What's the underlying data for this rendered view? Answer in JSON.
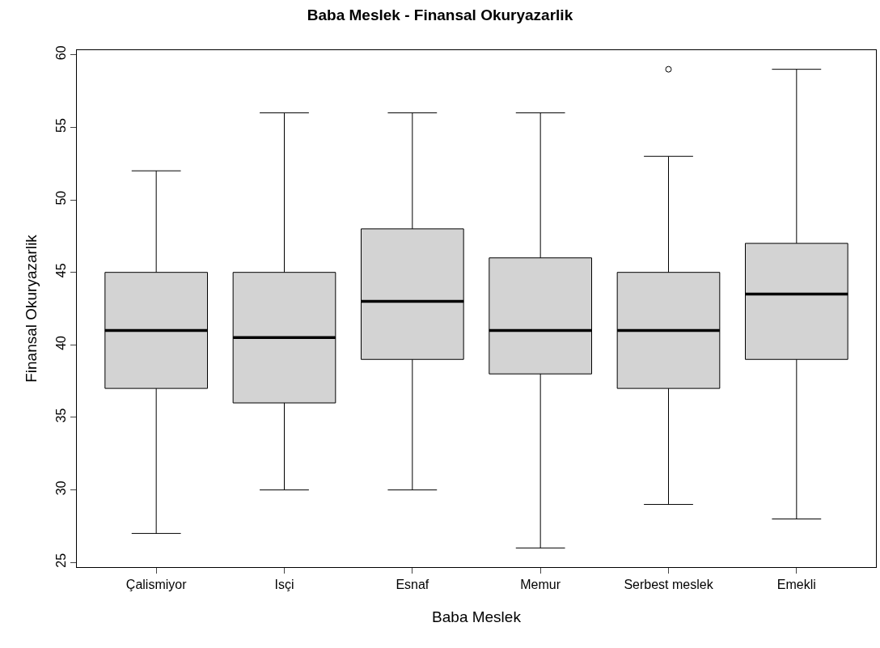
{
  "chart_data": {
    "type": "box",
    "title": "Baba Meslek - Finansal Okuryazarlik",
    "xlabel": "Baba Meslek",
    "ylabel": "Finansal Okuryazarlik",
    "categories": [
      "Çalismiyor",
      "Isçi",
      "Esnaf",
      "Memur",
      "Serbest meslek",
      "Emekli"
    ],
    "boxes": [
      {
        "low": 27,
        "q1": 37,
        "median": 41,
        "q3": 45,
        "high": 52
      },
      {
        "low": 30,
        "q1": 36,
        "median": 40.5,
        "q3": 45,
        "high": 56
      },
      {
        "low": 30,
        "q1": 39,
        "median": 43,
        "q3": 48,
        "high": 56
      },
      {
        "low": 26,
        "q1": 38,
        "median": 41,
        "q3": 46,
        "high": 56
      },
      {
        "low": 29,
        "q1": 37,
        "median": 41,
        "q3": 45,
        "high": 53,
        "outliers": [
          59
        ]
      },
      {
        "low": 28,
        "q1": 39,
        "median": 43.5,
        "q3": 47,
        "high": 59
      }
    ],
    "color": "#d3d3d3",
    "ylim": [
      24.68,
      60.32
    ],
    "yticks": [
      25,
      30,
      35,
      40,
      45,
      50,
      55,
      60
    ]
  }
}
